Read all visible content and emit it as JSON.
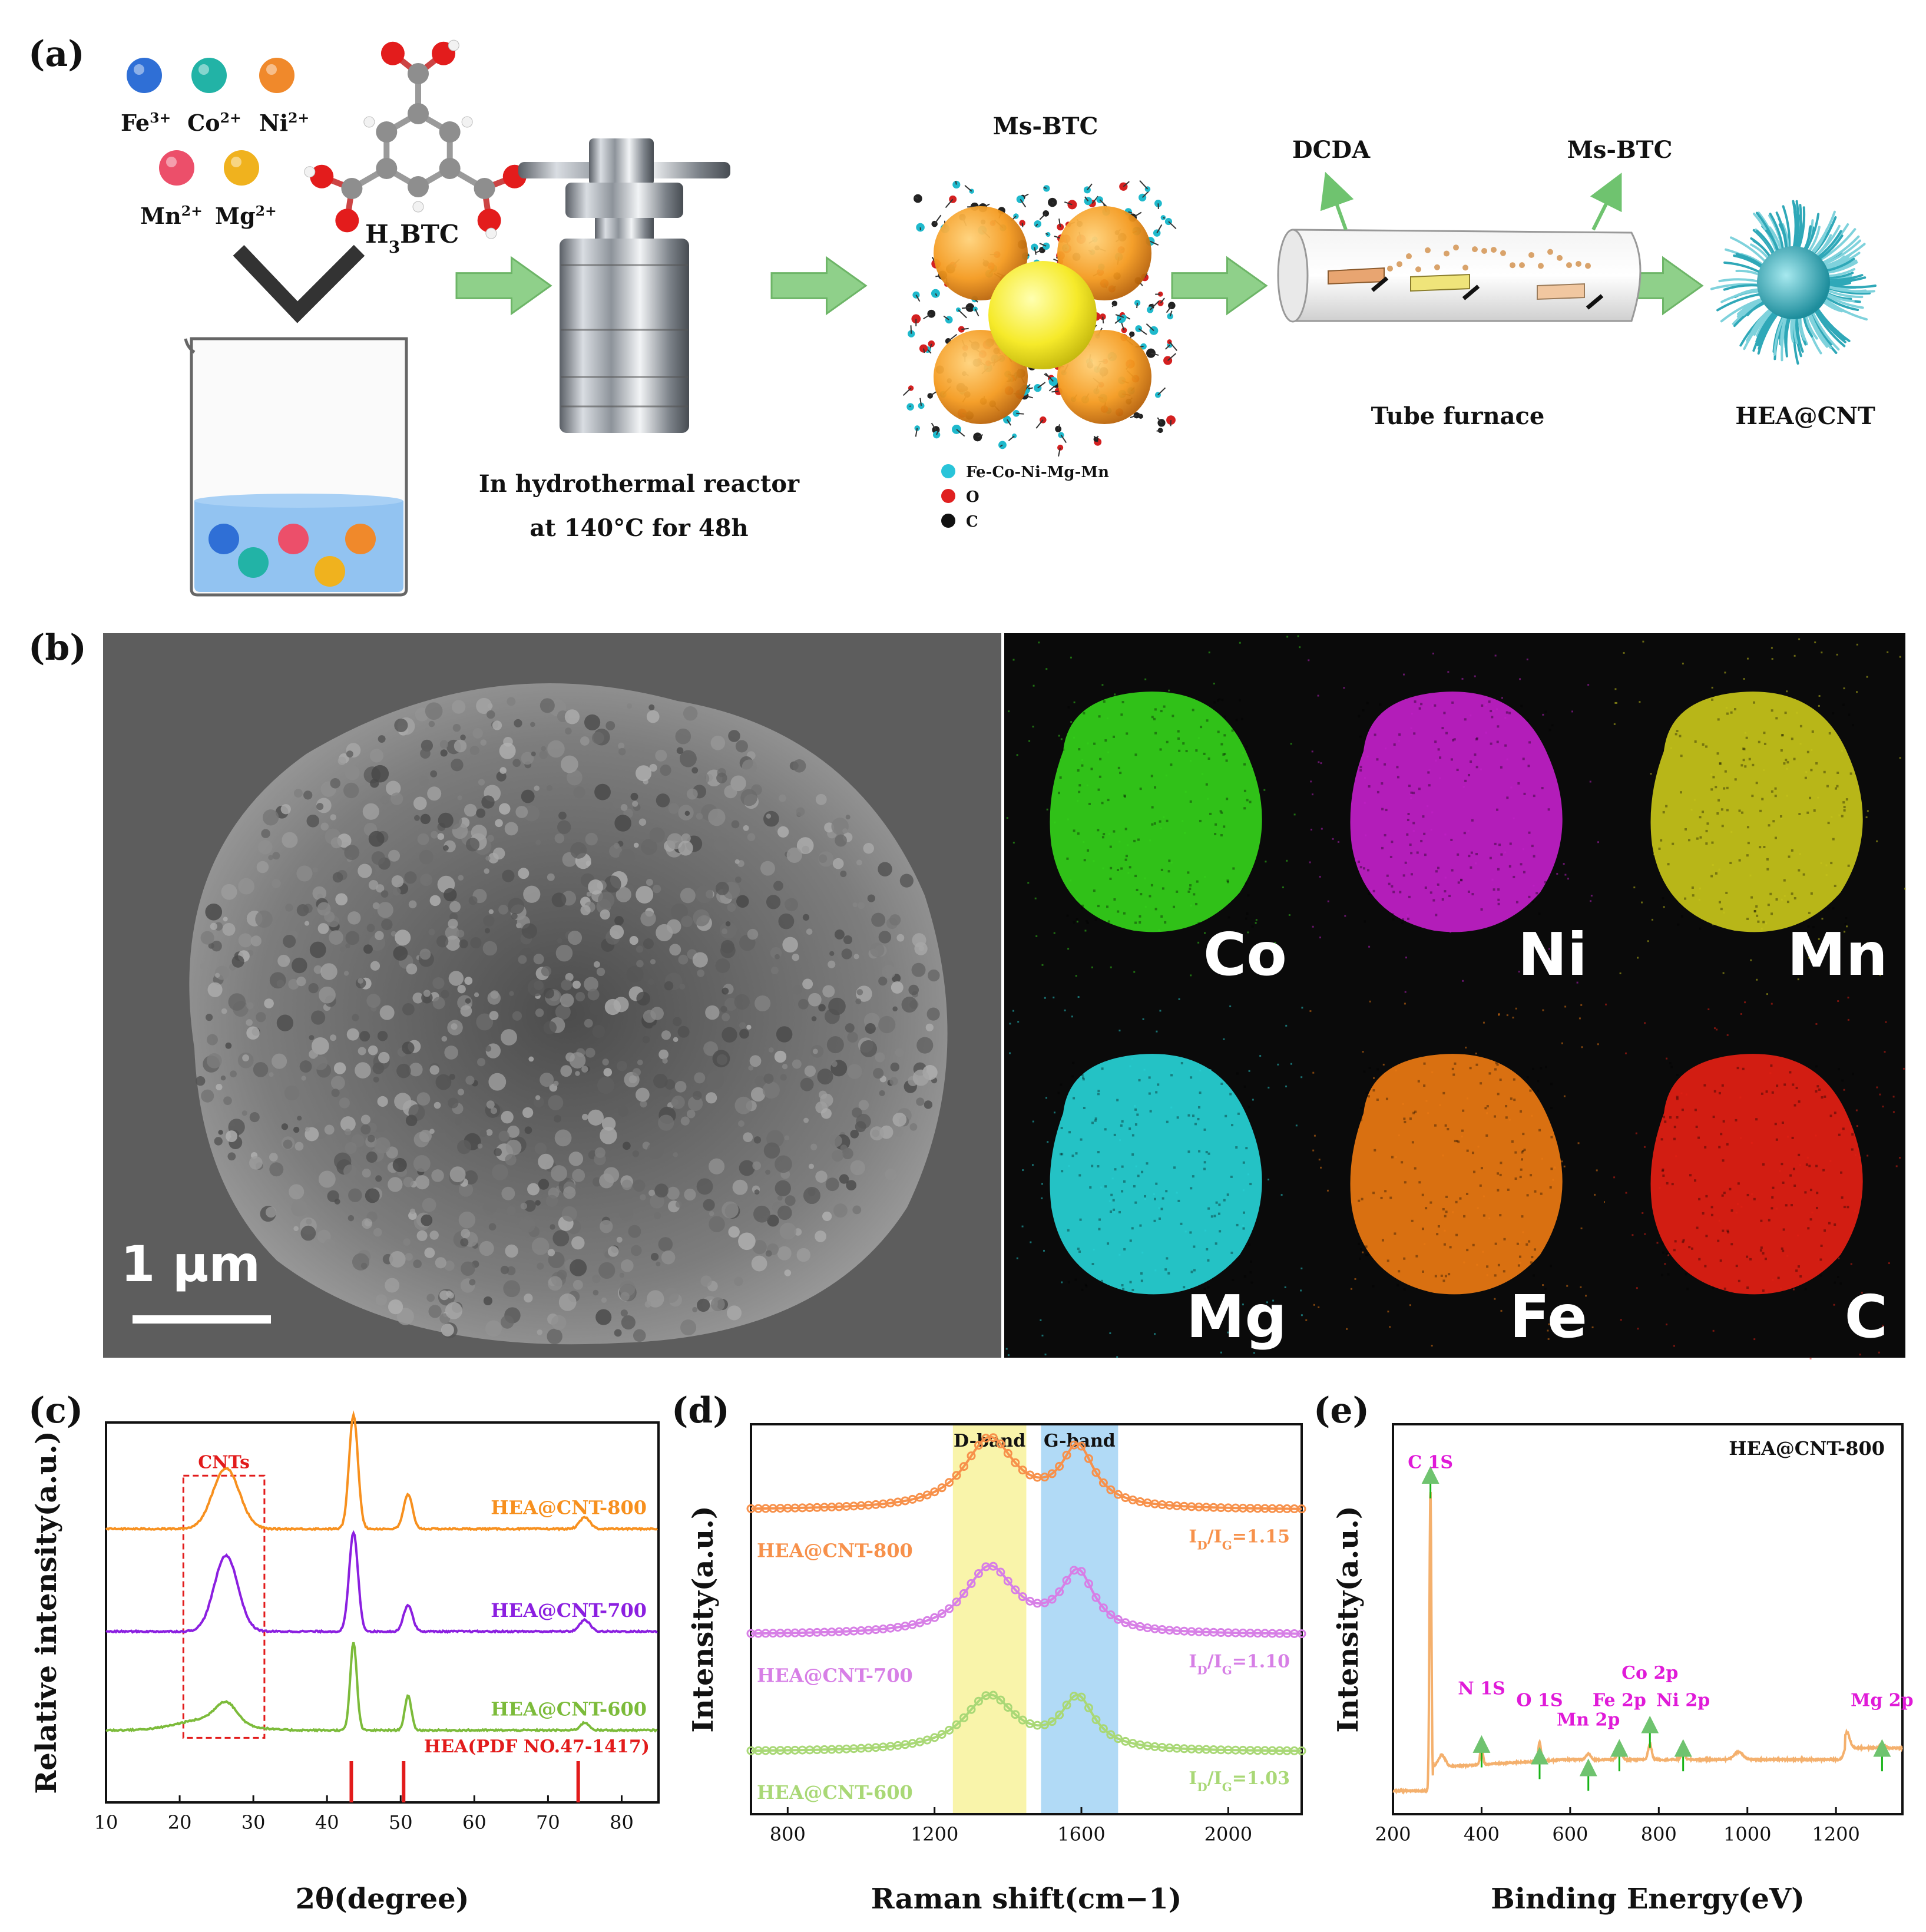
{
  "panels": {
    "a": {
      "label": "(a)",
      "ions": [
        {
          "symbol": "Fe",
          "charge": "3+",
          "color": "#2f6fd6"
        },
        {
          "symbol": "Co",
          "charge": "2+",
          "color": "#22b3a6"
        },
        {
          "symbol": "Ni",
          "charge": "2+",
          "color": "#f0892b"
        },
        {
          "symbol": "Mn",
          "charge": "2+",
          "color": "#ec4f6a"
        },
        {
          "symbol": "Mg",
          "charge": "2+",
          "color": "#f0b21e"
        }
      ],
      "linker": {
        "base": "H",
        "sub": "3",
        "tail": "BTC"
      },
      "reactor_caption": [
        "In hydrothermal reactor",
        "at 140°C for 48h"
      ],
      "mof_title": "Ms-BTC",
      "mof_legend": [
        {
          "label": "Fe-Co-Ni-Mg-Mn",
          "color": "#29c4d9"
        },
        {
          "label": "O",
          "color": "#e02020"
        },
        {
          "label": "C",
          "color": "#111111"
        }
      ],
      "furnace_labels": {
        "left": "DCDA",
        "right": "Ms-BTC",
        "caption": "Tube furnace"
      },
      "product": "HEA@CNT"
    },
    "b": {
      "label": "(b)",
      "scale_bar": "1 μm",
      "maps": [
        {
          "element": "Co",
          "color": "#34d11a"
        },
        {
          "element": "Ni",
          "color": "#c21fc9"
        },
        {
          "element": "Mn",
          "color": "#c8c51a"
        },
        {
          "element": "Mg",
          "color": "#27d3d6"
        },
        {
          "element": "Fe",
          "color": "#ec7a12"
        },
        {
          "element": "C",
          "color": "#e41f14"
        }
      ]
    },
    "c": {
      "label": "(c)",
      "box_label": "CNTs"
    },
    "d": {
      "label": "(d)"
    },
    "e": {
      "label": "(e)"
    }
  },
  "chart_data": [
    {
      "id": "c",
      "type": "line",
      "xlabel": "2θ(degree)",
      "ylabel": "Relative intensity(a.u.)",
      "xlim": [
        10,
        85
      ],
      "xticks": [
        10,
        20,
        30,
        40,
        50,
        60,
        70,
        80
      ],
      "series": [
        {
          "name": "HEA@CNT-800",
          "color": "#f7901e",
          "baseline": 0.72,
          "peaks": [
            [
              26.3,
              0.16,
              1.8
            ],
            [
              43.6,
              0.3,
              0.6
            ],
            [
              51.0,
              0.09,
              0.6
            ],
            [
              75.0,
              0.03,
              0.7
            ]
          ]
        },
        {
          "name": "HEA@CNT-700",
          "color": "#8b1fe0",
          "baseline": 0.45,
          "peaks": [
            [
              26.3,
              0.2,
              1.6
            ],
            [
              43.6,
              0.26,
              0.6
            ],
            [
              51.0,
              0.07,
              0.6
            ],
            [
              75.0,
              0.03,
              0.7
            ]
          ]
        },
        {
          "name": "HEA@CNT-600",
          "color": "#7cbb3a",
          "baseline": 0.19,
          "peaks": [
            [
              26.3,
              0.05,
              1.4
            ],
            [
              43.6,
              0.23,
              0.45
            ],
            [
              51.0,
              0.09,
              0.45
            ],
            [
              75.0,
              0.02,
              0.6
            ]
          ]
        }
      ],
      "reference": {
        "name": "HEA(PDF NO.47-1417)",
        "color": "#e21b1b",
        "lines": [
          43.3,
          50.4,
          74.1
        ]
      },
      "highlight_range": [
        20.5,
        31.5
      ]
    },
    {
      "id": "d",
      "type": "line",
      "xlabel": "Raman shift(cm−1)",
      "ylabel": "Intensity(a.u.)",
      "xlim": [
        700,
        2200
      ],
      "xticks": [
        800,
        1200,
        1600,
        2000
      ],
      "bands": [
        {
          "name": "D-band",
          "range": [
            1250,
            1450
          ],
          "color": "#f8f3a1"
        },
        {
          "name": "G-band",
          "range": [
            1490,
            1700
          ],
          "color": "#a9d6f5"
        }
      ],
      "series": [
        {
          "name": "HEA@CNT-800",
          "ratio": "1.15",
          "color": "#f7914b",
          "baseline": 0.78,
          "D": 0.18,
          "G": 0.15
        },
        {
          "name": "HEA@CNT-700",
          "ratio": "1.10",
          "color": "#d77fe6",
          "baseline": 0.46,
          "D": 0.17,
          "G": 0.15
        },
        {
          "name": "HEA@CNT-600",
          "ratio": "1.03",
          "color": "#a9d876",
          "baseline": 0.16,
          "D": 0.14,
          "G": 0.13
        }
      ]
    },
    {
      "id": "e",
      "type": "line",
      "title": "HEA@CNT-800",
      "xlabel": "Binding Energy(eV)",
      "ylabel": "Intensity(a.u.)",
      "xlim": [
        200,
        1350
      ],
      "xticks": [
        200,
        400,
        600,
        800,
        1000,
        1200
      ],
      "series": [
        {
          "name": "HEA@CNT-800",
          "color": "#f4b06d"
        }
      ],
      "peaks": [
        {
          "label": "C 1S",
          "x": 284.6
        },
        {
          "label": "N 1S",
          "x": 400
        },
        {
          "label": "O 1S",
          "x": 531
        },
        {
          "label": "Mn 2p",
          "x": 641
        },
        {
          "label": "Fe 2p",
          "x": 711
        },
        {
          "label": "Co 2p",
          "x": 780
        },
        {
          "label": "Ni 2p",
          "x": 855
        },
        {
          "label": "Mg 2p",
          "x": 1304
        }
      ]
    }
  ]
}
